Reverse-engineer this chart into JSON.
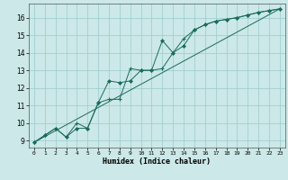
{
  "title": "",
  "xlabel": "Humidex (Indice chaleur)",
  "bg_color": "#cce8e8",
  "grid_color": "#99cccc",
  "line_color": "#1a6b5a",
  "xlim": [
    -0.5,
    23.5
  ],
  "ylim": [
    8.6,
    16.8
  ],
  "xticks": [
    0,
    1,
    2,
    3,
    4,
    5,
    6,
    7,
    8,
    9,
    10,
    11,
    12,
    13,
    14,
    15,
    16,
    17,
    18,
    19,
    20,
    21,
    22,
    23
  ],
  "yticks": [
    9,
    10,
    11,
    12,
    13,
    14,
    15,
    16
  ],
  "line1_x": [
    0,
    1,
    2,
    3,
    4,
    5,
    6,
    7,
    8,
    9,
    10,
    11,
    12,
    13,
    14,
    15,
    16,
    17,
    18,
    19,
    20,
    21,
    22,
    23
  ],
  "line1_y": [
    8.9,
    9.3,
    9.7,
    9.2,
    10.0,
    9.7,
    11.15,
    11.35,
    11.35,
    13.1,
    13.0,
    13.0,
    13.1,
    14.0,
    14.8,
    15.3,
    15.6,
    15.8,
    15.9,
    16.0,
    16.15,
    16.3,
    16.4,
    16.5
  ],
  "line2_x": [
    0,
    1,
    2,
    3,
    4,
    5,
    6,
    7,
    8,
    9,
    10,
    11,
    12,
    13,
    14,
    15,
    16,
    17,
    18,
    19,
    20,
    21,
    22,
    23
  ],
  "line2_y": [
    8.9,
    9.3,
    9.7,
    9.2,
    9.7,
    9.7,
    11.15,
    12.4,
    12.3,
    12.4,
    13.0,
    13.0,
    14.7,
    14.0,
    14.4,
    15.3,
    15.6,
    15.8,
    15.9,
    16.0,
    16.15,
    16.3,
    16.4,
    16.5
  ],
  "line3_x": [
    0,
    23
  ],
  "line3_y": [
    8.9,
    16.5
  ]
}
